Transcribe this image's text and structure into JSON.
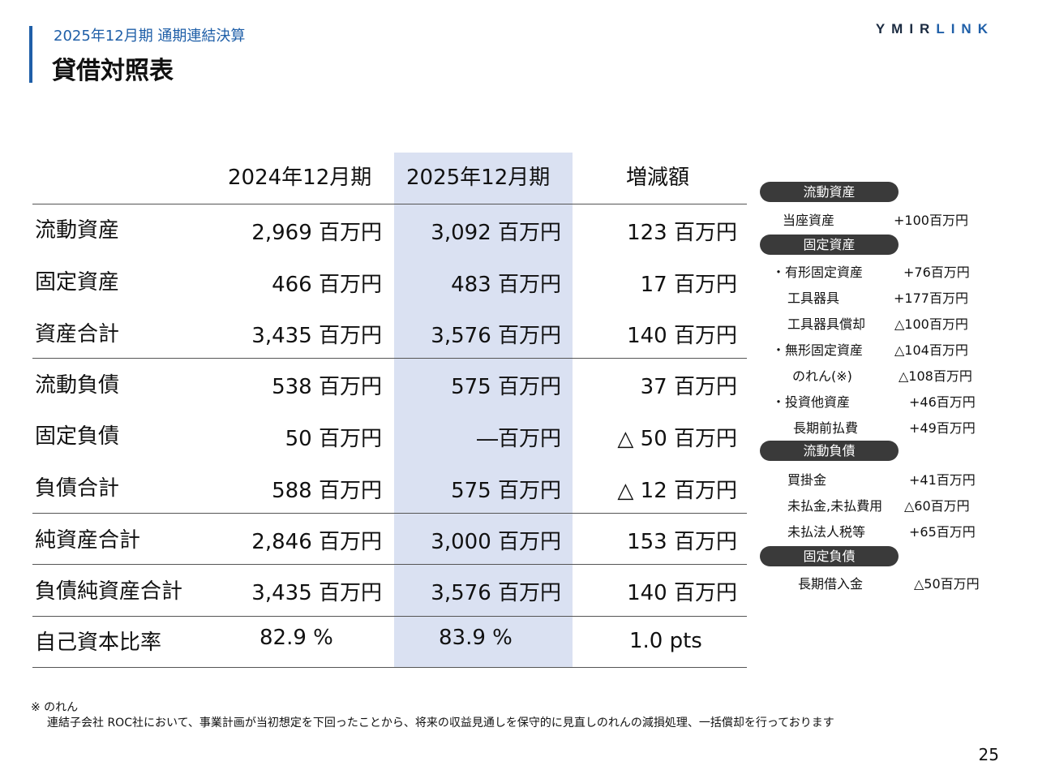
{
  "header": {
    "subtitle": "2025年12月期 通期連結決算",
    "title": "貸借対照表",
    "logo_a": "YMIR",
    "logo_b": "LINK"
  },
  "table": {
    "columns": [
      "2024年12月期",
      "2025年12月期",
      "増減額"
    ],
    "rows": [
      {
        "label": "流動資産",
        "prev": "2,969 百万円",
        "curr": "3,092 百万円",
        "diff": "123 百万円"
      },
      {
        "label": "固定資産",
        "prev": "466 百万円",
        "curr": "483 百万円",
        "diff": "17 百万円"
      },
      {
        "label": "資産合計",
        "prev": "3,435 百万円",
        "curr": "3,576 百万円",
        "diff": "140 百万円"
      },
      {
        "label": "流動負債",
        "prev": "538 百万円",
        "curr": "575 百万円",
        "diff": "37 百万円"
      },
      {
        "label": "固定負債",
        "prev": "50 百万円",
        "curr": "―百万円",
        "diff": "△ 50 百万円"
      },
      {
        "label": "負債合計",
        "prev": "588 百万円",
        "curr": "575 百万円",
        "diff": "△ 12 百万円"
      },
      {
        "label": "純資産合計",
        "prev": "2,846 百万円",
        "curr": "3,000 百万円",
        "diff": "153 百万円"
      },
      {
        "label": "負債純資産合計",
        "prev": "3,435 百万円",
        "curr": "3,576 百万円",
        "diff": "140 百万円"
      },
      {
        "label": "自己資本比率",
        "prev": "82.9 %",
        "curr": "83.9 %",
        "diff": "1.0 pts"
      }
    ]
  },
  "notes": {
    "current_assets": {
      "pill": "流動資産",
      "items": [
        {
          "label": "当座資産",
          "value": "+100百万円"
        }
      ]
    },
    "fixed_assets": {
      "pill": "固定資産",
      "items": [
        {
          "label": "・有形固定資産",
          "value": "+76百万円"
        },
        {
          "label": "工具器具",
          "value": "+177百万円"
        },
        {
          "label": "工具器具償却",
          "value": "△100百万円"
        },
        {
          "label": "・無形固定資産",
          "value": "△104百万円"
        },
        {
          "label": "のれん(※)",
          "value": "△108百万円"
        },
        {
          "label": "・投資他資産",
          "value": "+46百万円"
        },
        {
          "label": "長期前払費",
          "value": "+49百万円"
        }
      ]
    },
    "current_liabilities": {
      "pill": "流動負債",
      "items": [
        {
          "label": "買掛金",
          "value": "+41百万円"
        },
        {
          "label": "未払金,未払費用",
          "value": "△60百万円"
        },
        {
          "label": "未払法人税等",
          "value": "+65百万円"
        }
      ]
    },
    "fixed_liabilities": {
      "pill": "固定負債",
      "items": [
        {
          "label": "長期借入金",
          "value": "△50百万円"
        }
      ]
    }
  },
  "footnote": {
    "title": "※ のれん",
    "text": "連結子会社 ROC社において、事業計画が当初想定を下回ったことから、将来の収益見通しを保守的に見直しのれんの減損処理、一括償却を行っております"
  },
  "page_number": "25"
}
